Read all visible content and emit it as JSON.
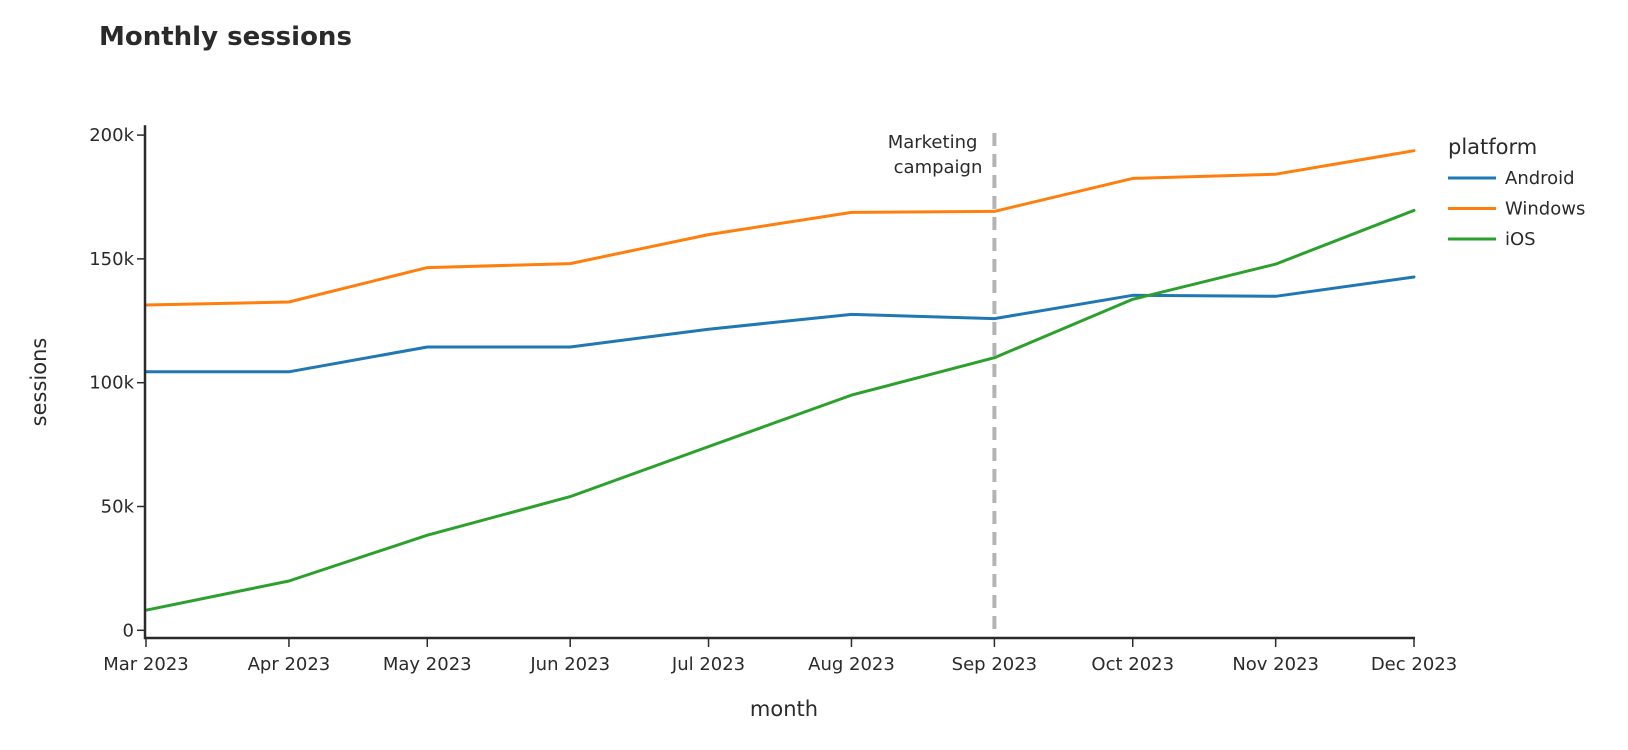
{
  "chart_data": {
    "type": "line",
    "title": "Monthly sessions",
    "xlabel": "month",
    "ylabel": "sessions",
    "x": [
      "2023-03-01",
      "2023-04-01",
      "2023-05-01",
      "2023-06-01",
      "2023-07-01",
      "2023-08-01",
      "2023-09-01",
      "2023-10-01",
      "2023-11-01",
      "2023-12-01"
    ],
    "x_tick_labels": [
      "Mar 2023",
      "Apr 2023",
      "May 2023",
      "Jun 2023",
      "Jul 2023",
      "Aug 2023",
      "Sep 2023",
      "Oct 2023",
      "Nov 2023",
      "Dec 2023"
    ],
    "y_ticks": [
      0,
      50000,
      100000,
      150000,
      200000
    ],
    "y_tick_labels": [
      "0",
      "50k",
      "100k",
      "150k",
      "200k"
    ],
    "ylim": [
      -3000,
      204000
    ],
    "grid": false,
    "legend": {
      "title": "platform",
      "placement": "top-right, outside plot"
    },
    "series": [
      {
        "name": "Android",
        "color": "#1f77b4",
        "values": [
          104400,
          104400,
          114400,
          114400,
          121600,
          127600,
          125900,
          135300,
          134900,
          142700
        ]
      },
      {
        "name": "Windows",
        "color": "#ff7f0e",
        "values": [
          131400,
          132600,
          146500,
          148100,
          159800,
          168800,
          169200,
          182500,
          184200,
          193700
        ]
      },
      {
        "name": "iOS",
        "color": "#2ca02c",
        "values": [
          8100,
          19900,
          38400,
          54000,
          74200,
          95000,
          110100,
          133700,
          147900,
          169600
        ]
      }
    ],
    "annotations": [
      {
        "type": "vline",
        "x": "2023-09-01",
        "style": "dashed",
        "color": "#b4b4b4",
        "text_lines": [
          "Marketing",
          "campaign"
        ]
      }
    ]
  }
}
